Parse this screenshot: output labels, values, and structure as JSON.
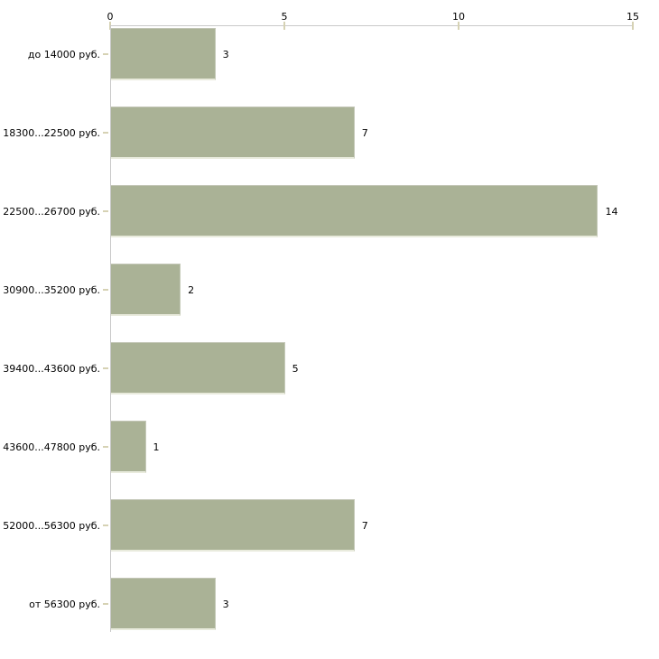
{
  "chart_data": {
    "type": "bar",
    "orientation": "horizontal",
    "title": "",
    "xlabel": "",
    "ylabel": "",
    "categories": [
      "до 14000 руб.",
      "18300...22500 руб.",
      "22500...26700 руб.",
      "30900...35200 руб.",
      "39400...43600 руб.",
      "43600...47800 руб.",
      "52000...56300 руб.",
      "от 56300 руб."
    ],
    "values": [
      3,
      7,
      14,
      2,
      5,
      1,
      7,
      3
    ],
    "x_ticks": [
      0,
      5,
      10,
      15
    ],
    "xlim": [
      0,
      15
    ],
    "value_labels_shown": true,
    "legend": "none",
    "grid": "off",
    "axis_position": "top",
    "colors": {
      "bar": "#aab296",
      "axis_line": "#c9c9c9",
      "tick_mark": "#d6d2b4",
      "text": "#000000",
      "background": "#ffffff"
    }
  }
}
